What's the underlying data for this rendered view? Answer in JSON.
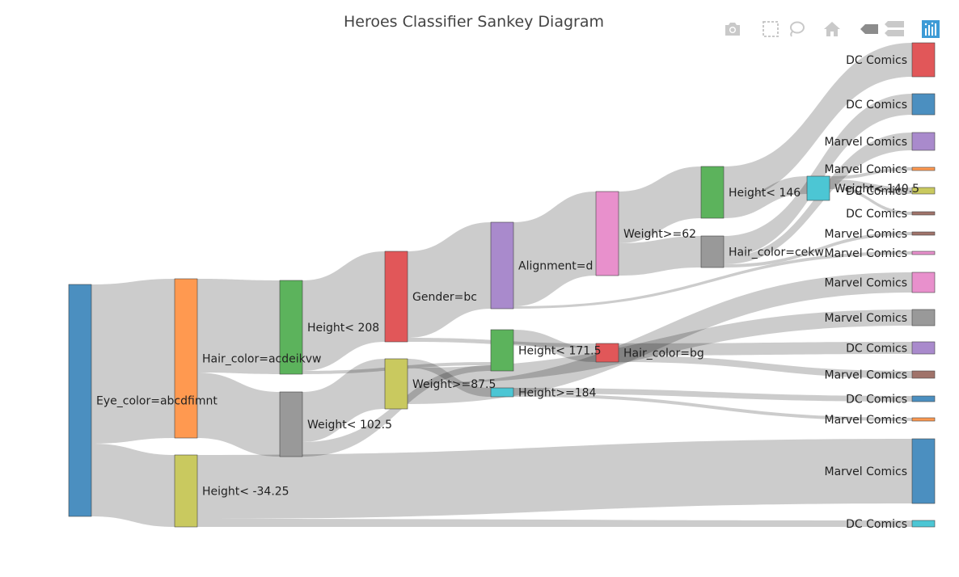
{
  "title": "Heroes Classifier Sankey Diagram",
  "toolbar": [
    {
      "name": "camera-icon",
      "label": "Download plot as a png"
    },
    {
      "name": "box-select-icon",
      "label": "Box Select"
    },
    {
      "name": "lasso-select-icon",
      "label": "Lasso Select"
    },
    {
      "name": "home-icon",
      "label": "Reset axes"
    },
    {
      "name": "hover-closest-icon",
      "label": "Show closest data on hover"
    },
    {
      "name": "hover-compare-icon",
      "label": "Compare data on hover"
    },
    {
      "name": "plotly-logo-icon",
      "label": "Produced with Plotly"
    }
  ],
  "nodes": [
    {
      "id": "eye",
      "label": "Eye_color=abcdfimnt",
      "color": "#4b8fc0"
    },
    {
      "id": "hair1",
      "label": "Hair_color=acdeikvw",
      "color": "#ff9950"
    },
    {
      "id": "hneg",
      "label": "Height< -34.25",
      "color": "#c9c95f"
    },
    {
      "id": "h208",
      "label": "Height< 208",
      "color": "#5cb35c"
    },
    {
      "id": "w102",
      "label": "Weight< 102.5",
      "color": "#999999"
    },
    {
      "id": "gender",
      "label": "Gender=bc",
      "color": "#e15759"
    },
    {
      "id": "w875",
      "label": "Weight>=87.5",
      "color": "#c9c95f"
    },
    {
      "id": "align",
      "label": "Alignment=d",
      "color": "#a98acc"
    },
    {
      "id": "h1715",
      "label": "Height< 171.5",
      "color": "#5cb35c"
    },
    {
      "id": "h184",
      "label": "Height>=184",
      "color": "#4cc6d4"
    },
    {
      "id": "w62",
      "label": "Weight>=62",
      "color": "#e890cc"
    },
    {
      "id": "hairbg",
      "label": "Hair_color=bg",
      "color": "#e15759"
    },
    {
      "id": "h146",
      "label": "Height< 146",
      "color": "#5cb35c"
    },
    {
      "id": "haircekw",
      "label": "Hair_color=cekw",
      "color": "#999999"
    },
    {
      "id": "w1405",
      "label": "Weight< 140.5",
      "color": "#4cc6d4"
    },
    {
      "id": "t1",
      "label": "DC Comics",
      "color": "#e15759"
    },
    {
      "id": "t2",
      "label": "DC Comics",
      "color": "#4b8fc0"
    },
    {
      "id": "t3",
      "label": "Marvel Comics",
      "color": "#a98acc"
    },
    {
      "id": "t4",
      "label": "Marvel Comics",
      "color": "#ff9950"
    },
    {
      "id": "t5",
      "label": "DC Comics",
      "color": "#c9c95f"
    },
    {
      "id": "t6",
      "label": "DC Comics",
      "color": "#a0736a"
    },
    {
      "id": "t7",
      "label": "Marvel Comics",
      "color": "#a0736a"
    },
    {
      "id": "t8",
      "label": "Marvel Comics",
      "color": "#e890cc"
    },
    {
      "id": "t9",
      "label": "Marvel Comics",
      "color": "#e890cc"
    },
    {
      "id": "t10",
      "label": "Marvel Comics",
      "color": "#999999"
    },
    {
      "id": "t11",
      "label": "DC Comics",
      "color": "#a98acc"
    },
    {
      "id": "t12",
      "label": "Marvel Comics",
      "color": "#a0736a"
    },
    {
      "id": "t13",
      "label": "DC Comics",
      "color": "#4b8fc0"
    },
    {
      "id": "t14",
      "label": "Marvel Comics",
      "color": "#ff9950"
    },
    {
      "id": "t15",
      "label": "Marvel Comics",
      "color": "#4b8fc0"
    },
    {
      "id": "t16",
      "label": "DC Comics",
      "color": "#4cc6d4"
    }
  ],
  "links": [
    {
      "source": "eye",
      "target": "hair1"
    },
    {
      "source": "eye",
      "target": "hneg"
    },
    {
      "source": "hair1",
      "target": "h208"
    },
    {
      "source": "hair1",
      "target": "w102"
    },
    {
      "source": "hneg",
      "target": "t15"
    },
    {
      "source": "hneg",
      "target": "t16"
    },
    {
      "source": "h208",
      "target": "gender"
    },
    {
      "source": "h208",
      "target": "h1715"
    },
    {
      "source": "w102",
      "target": "w875"
    },
    {
      "source": "w102",
      "target": "h1715"
    },
    {
      "source": "gender",
      "target": "align"
    },
    {
      "source": "gender",
      "target": "hairbg"
    },
    {
      "source": "w875",
      "target": "h184"
    },
    {
      "source": "w875",
      "target": "t10"
    },
    {
      "source": "w875",
      "target": "t9"
    },
    {
      "source": "align",
      "target": "w62"
    },
    {
      "source": "align",
      "target": "t8"
    },
    {
      "source": "h1715",
      "target": "hairbg"
    },
    {
      "source": "h184",
      "target": "t13"
    },
    {
      "source": "h184",
      "target": "t14"
    },
    {
      "source": "w62",
      "target": "h146"
    },
    {
      "source": "w62",
      "target": "haircekw"
    },
    {
      "source": "hairbg",
      "target": "t11"
    },
    {
      "source": "hairbg",
      "target": "t12"
    },
    {
      "source": "h146",
      "target": "t1"
    },
    {
      "source": "h146",
      "target": "w1405"
    },
    {
      "source": "haircekw",
      "target": "t2"
    },
    {
      "source": "haircekw",
      "target": "t3"
    },
    {
      "source": "haircekw",
      "target": "t7"
    },
    {
      "source": "w1405",
      "target": "t4"
    },
    {
      "source": "w1405",
      "target": "t5"
    },
    {
      "source": "w1405",
      "target": "t6"
    }
  ]
}
